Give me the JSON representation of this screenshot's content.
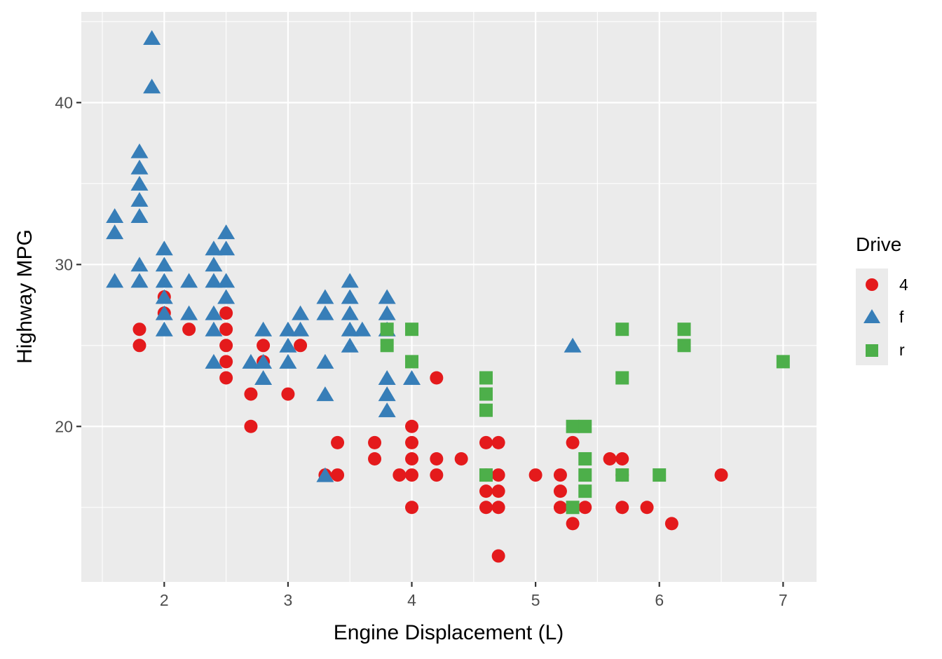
{
  "chart_data": {
    "type": "scatter",
    "title": "",
    "xlabel": "Engine Displacement (L)",
    "ylabel": "Highway MPG",
    "xlim": [
      1.33,
      7.27
    ],
    "ylim": [
      10.4,
      45.6
    ],
    "xticks": [
      2,
      3,
      4,
      5,
      6,
      7
    ],
    "yticks": [
      20,
      30,
      40
    ],
    "grid": true,
    "legend": {
      "title": "Drive",
      "position": "right",
      "entries": [
        "4",
        "f",
        "r"
      ]
    },
    "series": [
      {
        "name": "4",
        "shape": "circle",
        "color": "#E41A1C",
        "points": [
          [
            1.8,
            26
          ],
          [
            1.8,
            25
          ],
          [
            2.0,
            28
          ],
          [
            2.0,
            27
          ],
          [
            2.2,
            26
          ],
          [
            2.5,
            27
          ],
          [
            2.5,
            26
          ],
          [
            2.5,
            25
          ],
          [
            2.5,
            24
          ],
          [
            2.5,
            23
          ],
          [
            2.7,
            22
          ],
          [
            2.7,
            20
          ],
          [
            2.8,
            25
          ],
          [
            2.8,
            24
          ],
          [
            3.0,
            22
          ],
          [
            3.1,
            25
          ],
          [
            3.3,
            17
          ],
          [
            3.4,
            19
          ],
          [
            3.4,
            17
          ],
          [
            3.7,
            19
          ],
          [
            3.7,
            18
          ],
          [
            3.9,
            17
          ],
          [
            4.0,
            20
          ],
          [
            4.0,
            19
          ],
          [
            4.0,
            18
          ],
          [
            4.0,
            17
          ],
          [
            4.0,
            15
          ],
          [
            4.2,
            23
          ],
          [
            4.2,
            18
          ],
          [
            4.2,
            17
          ],
          [
            4.4,
            18
          ],
          [
            4.6,
            19
          ],
          [
            4.6,
            17
          ],
          [
            4.6,
            16
          ],
          [
            4.6,
            15
          ],
          [
            4.7,
            19
          ],
          [
            4.7,
            17
          ],
          [
            4.7,
            16
          ],
          [
            4.7,
            15
          ],
          [
            4.7,
            12
          ],
          [
            5.0,
            17
          ],
          [
            5.2,
            17
          ],
          [
            5.2,
            16
          ],
          [
            5.2,
            15
          ],
          [
            5.3,
            19
          ],
          [
            5.3,
            14
          ],
          [
            5.4,
            15
          ],
          [
            5.6,
            18
          ],
          [
            5.7,
            18
          ],
          [
            5.7,
            17
          ],
          [
            5.7,
            15
          ],
          [
            5.9,
            15
          ],
          [
            6.1,
            14
          ],
          [
            6.5,
            17
          ]
        ]
      },
      {
        "name": "f",
        "shape": "triangle",
        "color": "#377EB8",
        "points": [
          [
            1.6,
            33
          ],
          [
            1.6,
            32
          ],
          [
            1.6,
            29
          ],
          [
            1.8,
            37
          ],
          [
            1.8,
            36
          ],
          [
            1.8,
            35
          ],
          [
            1.8,
            34
          ],
          [
            1.8,
            33
          ],
          [
            1.8,
            30
          ],
          [
            1.8,
            29
          ],
          [
            1.9,
            44
          ],
          [
            1.9,
            41
          ],
          [
            2.0,
            31
          ],
          [
            2.0,
            30
          ],
          [
            2.0,
            29
          ],
          [
            2.0,
            28
          ],
          [
            2.0,
            27
          ],
          [
            2.0,
            26
          ],
          [
            2.2,
            29
          ],
          [
            2.2,
            27
          ],
          [
            2.4,
            31
          ],
          [
            2.4,
            30
          ],
          [
            2.4,
            29
          ],
          [
            2.4,
            27
          ],
          [
            2.4,
            26
          ],
          [
            2.4,
            24
          ],
          [
            2.5,
            32
          ],
          [
            2.5,
            31
          ],
          [
            2.5,
            29
          ],
          [
            2.5,
            28
          ],
          [
            2.7,
            24
          ],
          [
            2.8,
            26
          ],
          [
            2.8,
            24
          ],
          [
            2.8,
            23
          ],
          [
            3.0,
            26
          ],
          [
            3.0,
            25
          ],
          [
            3.0,
            24
          ],
          [
            3.1,
            27
          ],
          [
            3.1,
            26
          ],
          [
            3.3,
            28
          ],
          [
            3.3,
            27
          ],
          [
            3.3,
            24
          ],
          [
            3.3,
            22
          ],
          [
            3.3,
            17
          ],
          [
            3.5,
            29
          ],
          [
            3.5,
            28
          ],
          [
            3.5,
            27
          ],
          [
            3.5,
            26
          ],
          [
            3.5,
            25
          ],
          [
            3.6,
            26
          ],
          [
            3.8,
            28
          ],
          [
            3.8,
            27
          ],
          [
            3.8,
            26
          ],
          [
            3.8,
            23
          ],
          [
            3.8,
            22
          ],
          [
            3.8,
            21
          ],
          [
            4.0,
            23
          ],
          [
            5.3,
            25
          ]
        ]
      },
      {
        "name": "r",
        "shape": "square",
        "color": "#4DAF4A",
        "points": [
          [
            3.8,
            26
          ],
          [
            3.8,
            25
          ],
          [
            4.0,
            26
          ],
          [
            4.0,
            24
          ],
          [
            4.6,
            23
          ],
          [
            4.6,
            22
          ],
          [
            4.6,
            21
          ],
          [
            4.6,
            17
          ],
          [
            5.3,
            20
          ],
          [
            5.3,
            15
          ],
          [
            5.4,
            20
          ],
          [
            5.4,
            18
          ],
          [
            5.4,
            17
          ],
          [
            5.4,
            16
          ],
          [
            5.7,
            26
          ],
          [
            5.7,
            23
          ],
          [
            5.7,
            17
          ],
          [
            6.0,
            17
          ],
          [
            6.2,
            26
          ],
          [
            6.2,
            25
          ],
          [
            7.0,
            24
          ]
        ]
      }
    ]
  },
  "colors": {
    "panel_background": "#EBEBEB",
    "grid_major": "#FFFFFF",
    "tick_label": "#4D4D4D",
    "tick_mark": "#333333"
  }
}
